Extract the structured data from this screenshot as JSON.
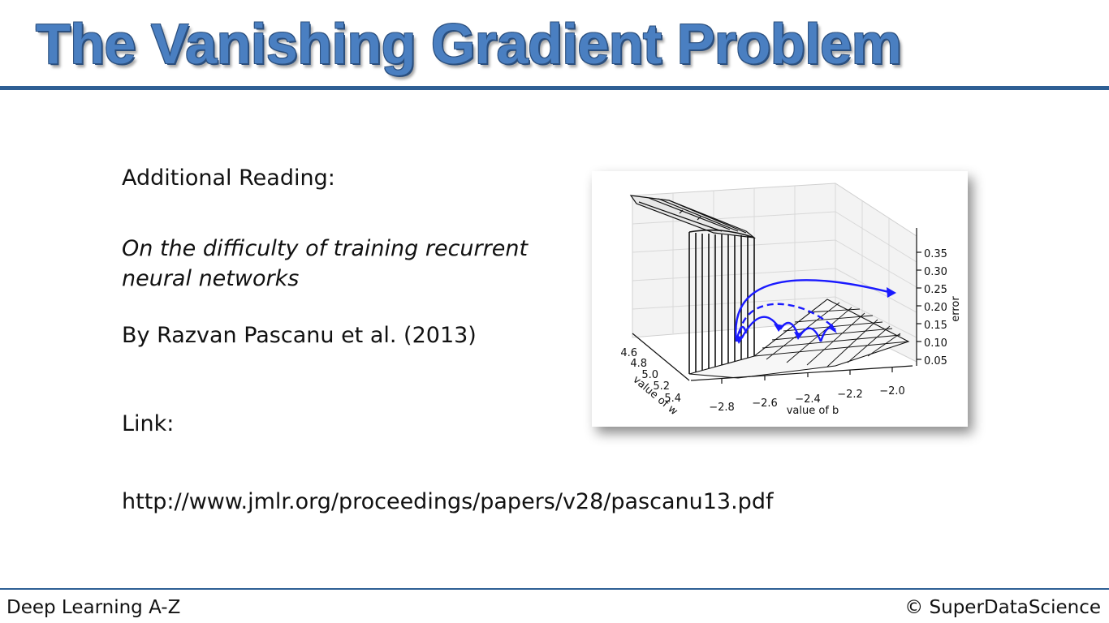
{
  "slide": {
    "title": "The Vanishing Gradient Problem",
    "heading": "Additional Reading:",
    "paper_title": "On the difficulty of training recurrent neural networks",
    "authors": "By Razvan Pascanu et al. (2013)",
    "link_label": "Link:",
    "url": "http://www.jmlr.org/proceedings/papers/v28/pascanu13.pdf"
  },
  "figure": {
    "z_label": "error",
    "x_label": "value of b",
    "y_label": "value of w",
    "z_ticks": [
      "0.35",
      "0.30",
      "0.25",
      "0.20",
      "0.15",
      "0.10",
      "0.05"
    ],
    "x_ticks": [
      "−2.8",
      "−2.6",
      "−2.4",
      "−2.2",
      "−2.0"
    ],
    "y_ticks": [
      "4.6",
      "4.8",
      "5.0",
      "5.2",
      "5.4"
    ],
    "arrow_color": "#1a1aff"
  },
  "footer": {
    "course": "Deep Learning A-Z",
    "copyright": "© SuperDataScience"
  },
  "colors": {
    "title": "#4a7fc1",
    "rule": "#2e5f94"
  }
}
